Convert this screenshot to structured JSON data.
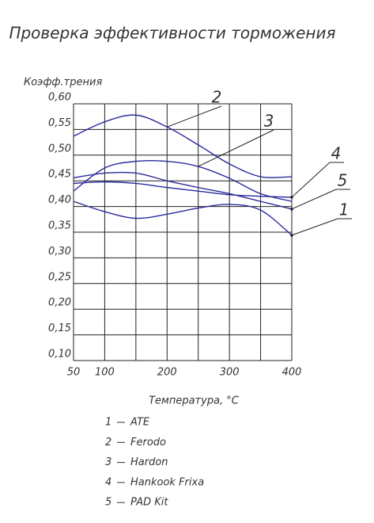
{
  "chart_data": {
    "type": "line",
    "title": "Проверка эффективности торможения",
    "y_label": "Коэфф.трения",
    "x_label": "Температура, °С",
    "x": [
      50,
      100,
      150,
      200,
      250,
      300,
      350,
      400
    ],
    "series": [
      {
        "number": "1",
        "name": "ATE",
        "color": "#2b2b9c",
        "values": [
          0.41,
          0.39,
          0.377,
          0.385,
          0.397,
          0.404,
          0.393,
          0.344
        ]
      },
      {
        "number": "2",
        "name": "Ferodo",
        "color": "#2b2b9c",
        "values": [
          0.537,
          0.565,
          0.578,
          0.555,
          0.52,
          0.483,
          0.458,
          0.458
        ]
      },
      {
        "number": "3",
        "name": "Hardon",
        "color": "#2b2b9c",
        "values": [
          0.43,
          0.475,
          0.488,
          0.488,
          0.478,
          0.455,
          0.425,
          0.41
        ]
      },
      {
        "number": "4",
        "name": "Hankook Frixa",
        "color": "#2b2b9c",
        "values": [
          0.445,
          0.448,
          0.445,
          0.437,
          0.43,
          0.423,
          0.42,
          0.418
        ]
      },
      {
        "number": "5",
        "name": "PAD Kit",
        "color": "#2b2b9c",
        "values": [
          0.456,
          0.465,
          0.465,
          0.45,
          0.437,
          0.425,
          0.41,
          0.395
        ]
      }
    ],
    "xlim": [
      50,
      400
    ],
    "ylim": [
      0.1,
      0.6
    ],
    "xticks": [
      50,
      100,
      200,
      300,
      400
    ],
    "xgrid": [
      50,
      100,
      150,
      200,
      250,
      300,
      350,
      400
    ],
    "yticks": [
      {
        "value": 0.1,
        "label": "0,10"
      },
      {
        "value": 0.15,
        "label": "0,15"
      },
      {
        "value": 0.2,
        "label": "0,20"
      },
      {
        "value": 0.25,
        "label": "0,25"
      },
      {
        "value": 0.3,
        "label": "0,30"
      },
      {
        "value": 0.35,
        "label": "0,35"
      },
      {
        "value": 0.4,
        "label": "0,40"
      },
      {
        "value": 0.45,
        "label": "0,45"
      },
      {
        "value": 0.5,
        "label": "0,50"
      },
      {
        "value": 0.55,
        "label": "0,55"
      },
      {
        "value": 0.6,
        "label": "0,60"
      }
    ],
    "grid": true
  }
}
